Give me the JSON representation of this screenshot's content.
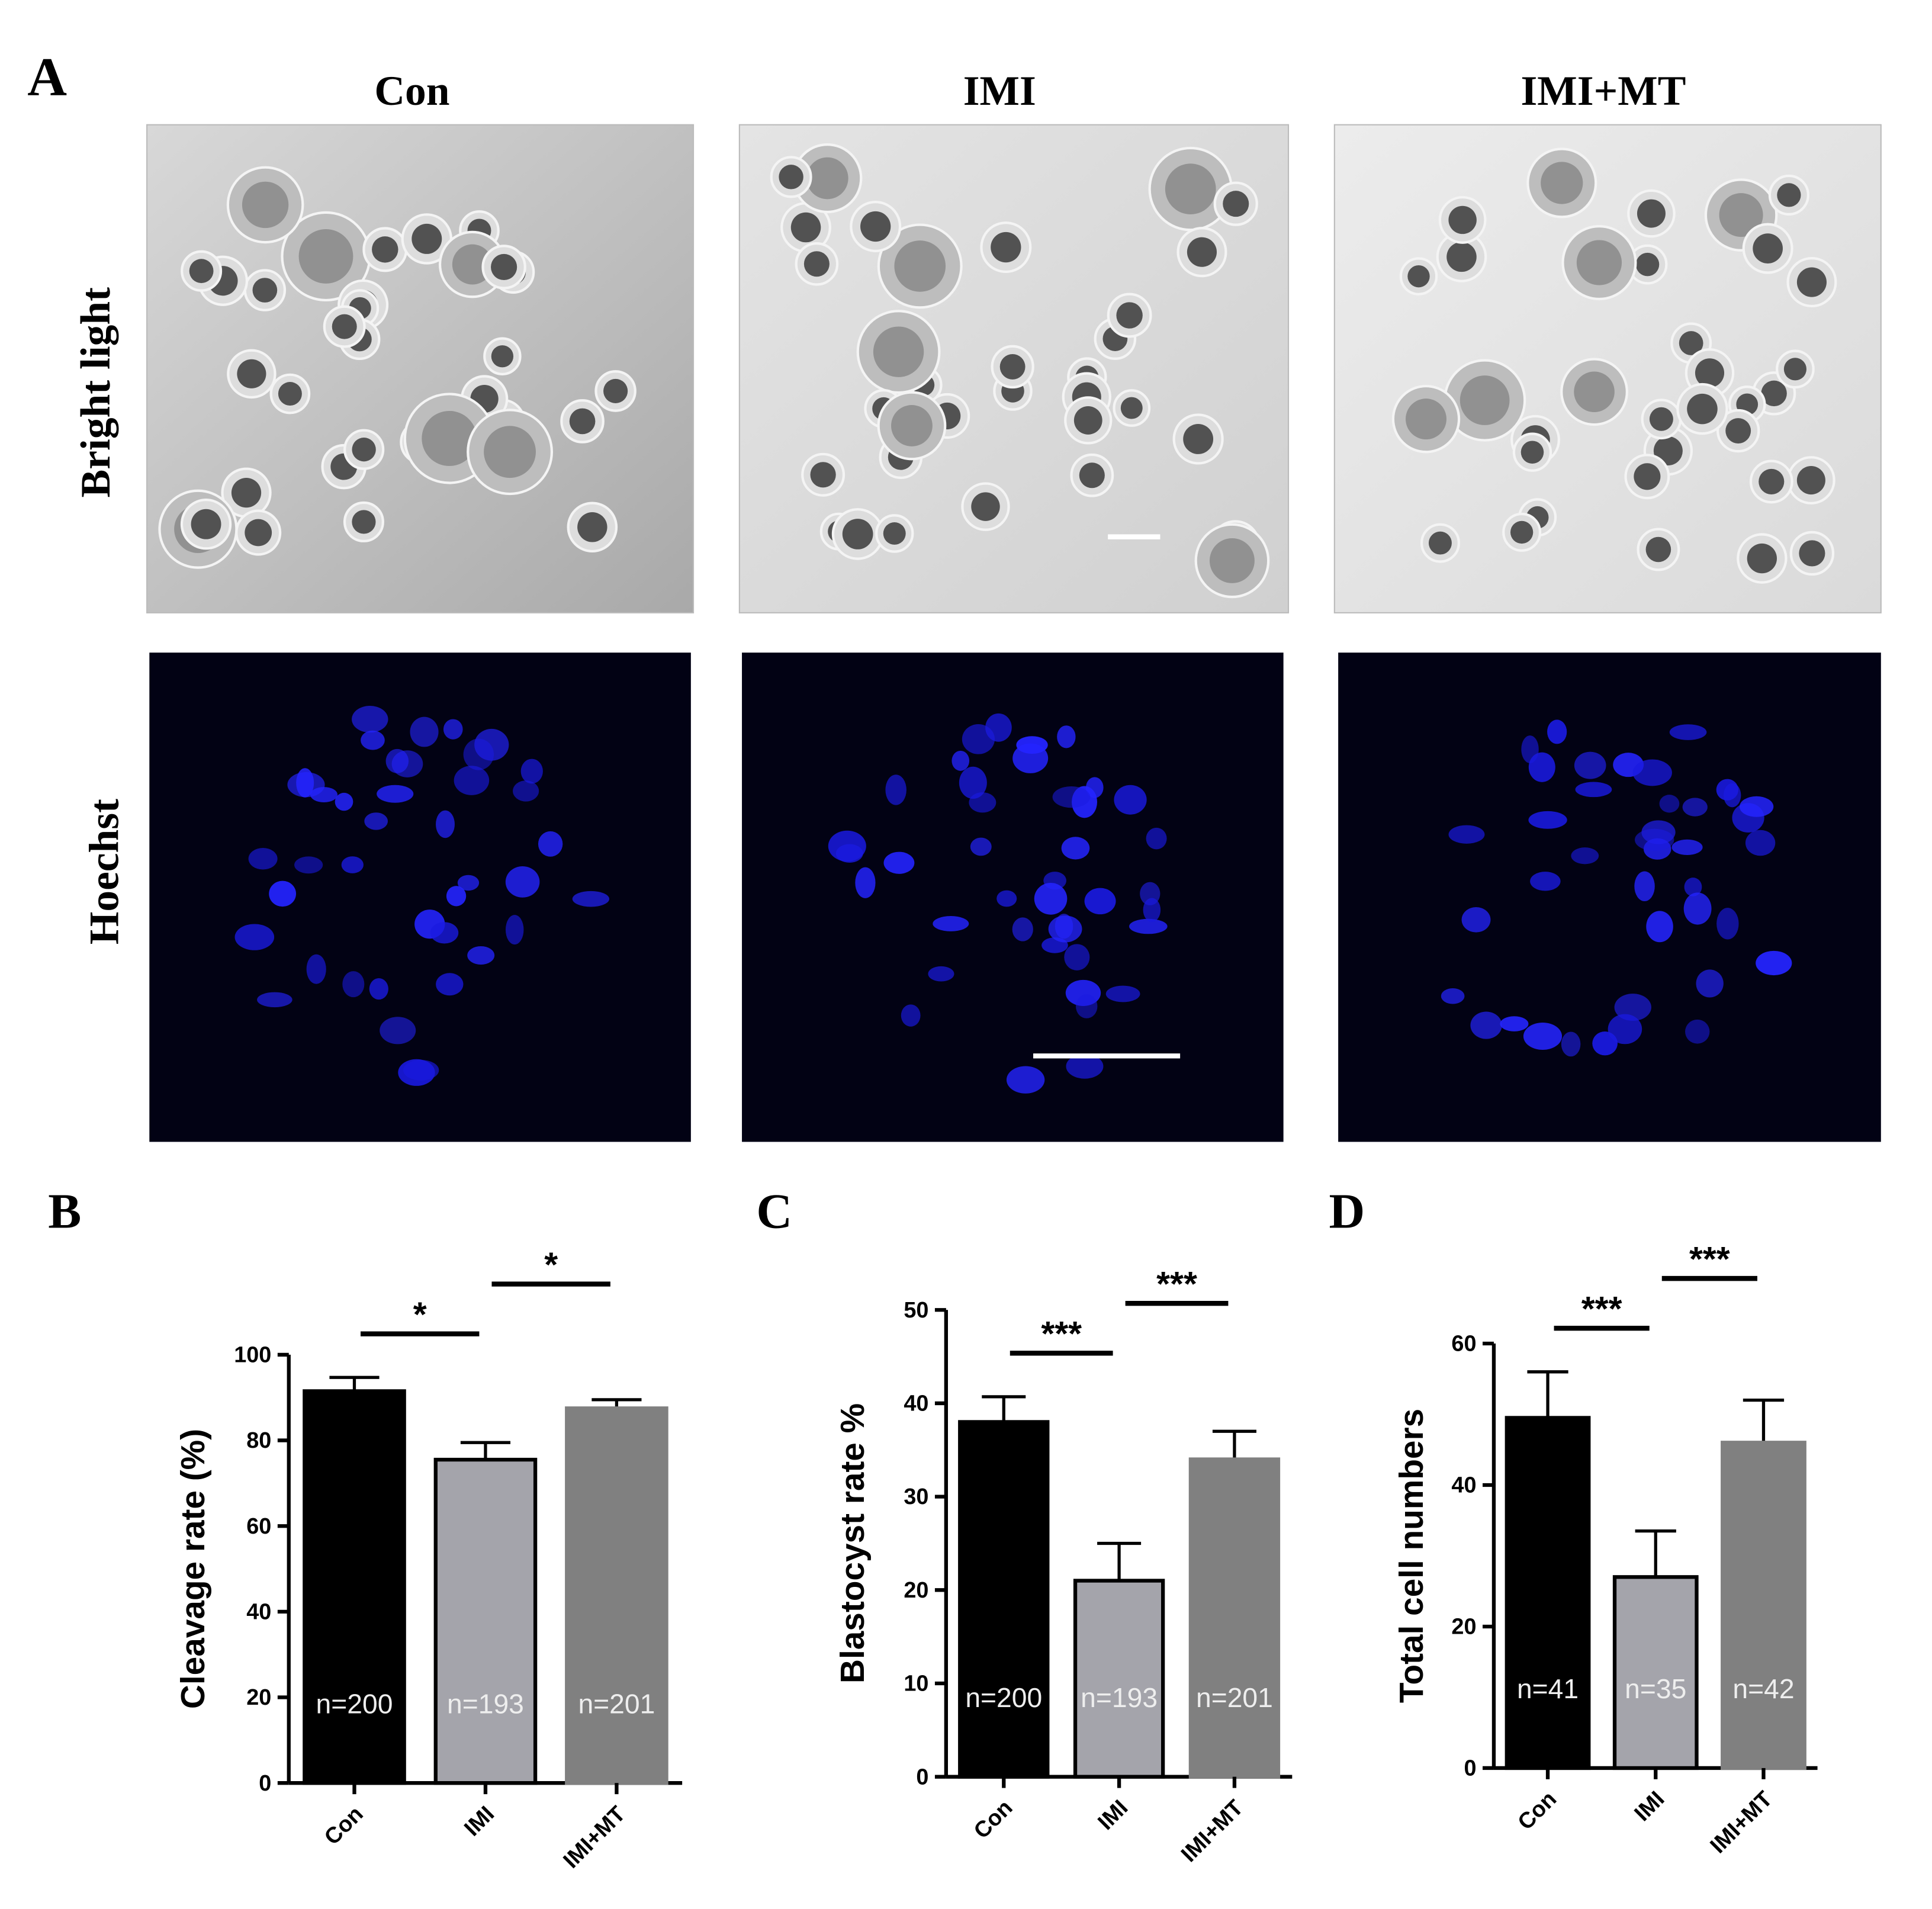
{
  "figure": {
    "panels": [
      "A",
      "B",
      "C",
      "D"
    ],
    "columns": [
      "Con",
      "IMI",
      "IMI+MT"
    ],
    "rows": [
      "Bright light",
      "Hoechst"
    ]
  },
  "chart_data": [
    {
      "type": "bar",
      "ylabel": "Cleavage rate (%)",
      "categories": [
        "Con",
        "IMI",
        "IMI+MT"
      ],
      "values": [
        91.5,
        75.5,
        87.5
      ],
      "errors": [
        3.2,
        4,
        2
      ],
      "colors": [
        "#000000",
        "#a4a4ab",
        "#808080"
      ],
      "edgecolors": [
        "#000000",
        "#000000",
        "#808080"
      ],
      "annotations": [
        "n=200",
        "n=193",
        "n=201"
      ],
      "significance": [
        "*",
        "*"
      ],
      "ylim": [
        0,
        100
      ],
      "yticks": [
        0,
        20,
        40,
        60,
        80,
        100
      ]
    },
    {
      "type": "bar",
      "ylabel": "Blastocyst rate %",
      "categories": [
        "Con",
        "IMI",
        "IMI+MT"
      ],
      "values": [
        38,
        21,
        34
      ],
      "errors": [
        2.7,
        4,
        3
      ],
      "colors": [
        "#000000",
        "#a4a4ab",
        "#808080"
      ],
      "edgecolors": [
        "#000000",
        "#000000",
        "#808080"
      ],
      "annotations": [
        "n=200",
        "n=193",
        "n=201"
      ],
      "significance": [
        "***",
        "***"
      ],
      "ylim": [
        0,
        50
      ],
      "yticks": [
        0,
        10,
        20,
        30,
        40,
        50
      ]
    },
    {
      "type": "bar",
      "ylabel": "Total cell numbers",
      "categories": [
        "Con",
        "IMI",
        "IMI+MT"
      ],
      "values": [
        49.5,
        27,
        46
      ],
      "errors": [
        6.5,
        6.5,
        6
      ],
      "colors": [
        "#000000",
        "#a4a4ab",
        "#808080"
      ],
      "edgecolors": [
        "#000000",
        "#000000",
        "#808080"
      ],
      "annotations": [
        "n=41",
        "n=35",
        "n=42"
      ],
      "significance": [
        "***",
        "***"
      ],
      "ylim": [
        0,
        60
      ],
      "yticks": [
        0,
        20,
        40,
        60
      ]
    }
  ]
}
